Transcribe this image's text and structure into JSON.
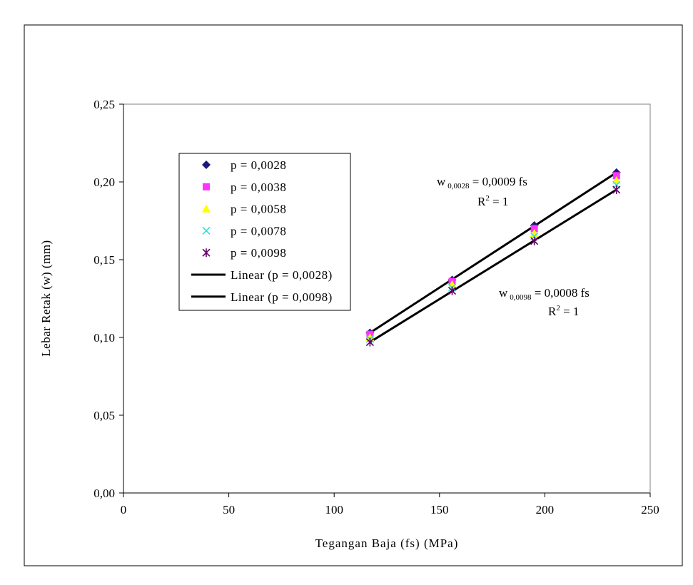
{
  "chart_data": {
    "type": "scatter",
    "xlabel": "Tegangan Baja (fs) (MPa)",
    "ylabel": "Lebar Retak (w) (mm)",
    "xlim": [
      0,
      250
    ],
    "ylim": [
      0,
      0.25
    ],
    "x_ticks": [
      "0",
      "50",
      "100",
      "150",
      "200",
      "250"
    ],
    "y_ticks": [
      "0,00",
      "0,05",
      "0,10",
      "0,15",
      "0,20",
      "0,25"
    ],
    "x_tick_values": [
      0,
      50,
      100,
      150,
      200,
      250
    ],
    "y_tick_values": [
      0,
      0.05,
      0.1,
      0.15,
      0.2,
      0.25
    ],
    "grid": false,
    "legend_position": "upper-left inside plot",
    "series": [
      {
        "name": "p = 0,0028",
        "marker": "diamond",
        "color": "#1a1a7a",
        "x": [
          117,
          156,
          195,
          234
        ],
        "y": [
          0.103,
          0.137,
          0.172,
          0.206
        ]
      },
      {
        "name": "p = 0,0038",
        "marker": "square",
        "color": "#ff33ff",
        "x": [
          117,
          156,
          195,
          234
        ],
        "y": [
          0.102,
          0.136,
          0.17,
          0.204
        ]
      },
      {
        "name": "p = 0,0058",
        "marker": "triangle",
        "color": "#ffff00",
        "x": [
          117,
          156,
          195,
          234
        ],
        "y": [
          0.1,
          0.134,
          0.167,
          0.201
        ]
      },
      {
        "name": "p = 0,0078",
        "marker": "x",
        "color": "#33dddd",
        "x": [
          117,
          156,
          195,
          234
        ],
        "y": [
          0.099,
          0.132,
          0.165,
          0.198
        ]
      },
      {
        "name": "p = 0,0098",
        "marker": "star",
        "color": "#660066",
        "x": [
          117,
          156,
          195,
          234
        ],
        "y": [
          0.097,
          0.13,
          0.162,
          0.195
        ]
      }
    ],
    "trendlines": [
      {
        "name": "Linear (p = 0,0028)",
        "color": "#000000",
        "x": [
          117,
          234
        ],
        "y": [
          0.103,
          0.206
        ]
      },
      {
        "name": "Linear (p = 0,0098)",
        "color": "#000000",
        "x": [
          117,
          234
        ],
        "y": [
          0.097,
          0.195
        ]
      }
    ],
    "annotations": [
      {
        "id": "eq1",
        "w": "w",
        "sub": "0,0028",
        "rest": " = 0,0009 fs",
        "r2": "R",
        "r2sup": "2",
        "r2rest": " = 1"
      },
      {
        "id": "eq2",
        "w": "w",
        "sub": "0,0098",
        "rest": " = 0,0008 fs",
        "r2": "R",
        "r2sup": "2",
        "r2rest": " = 1"
      }
    ]
  }
}
